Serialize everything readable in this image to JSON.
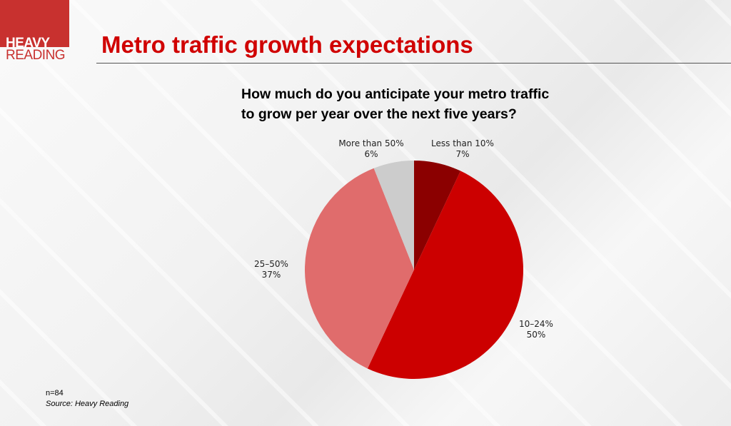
{
  "logo": {
    "line1": "HEAVY",
    "line2": "READING"
  },
  "title": "Metro traffic growth expectations",
  "question": [
    "How much do you anticipate your metro traffic",
    "to grow per year over the next five years?"
  ],
  "footer": {
    "n": "n=84",
    "source": "Source: Heavy Reading"
  },
  "chart_data": {
    "type": "pie",
    "title": "How much do you anticipate your metro traffic to grow per year over the next five years?",
    "categories": [
      "Less than 10%",
      "10–24%",
      "25–50%",
      "More than 50%"
    ],
    "values": [
      7,
      50,
      37,
      6
    ],
    "labels": [
      "7%",
      "50%",
      "37%",
      "6%"
    ],
    "colors": [
      "#8b0000",
      "#cc0000",
      "#e06c6c",
      "#cccccc"
    ],
    "start": "12 o'clock, clockwise"
  }
}
